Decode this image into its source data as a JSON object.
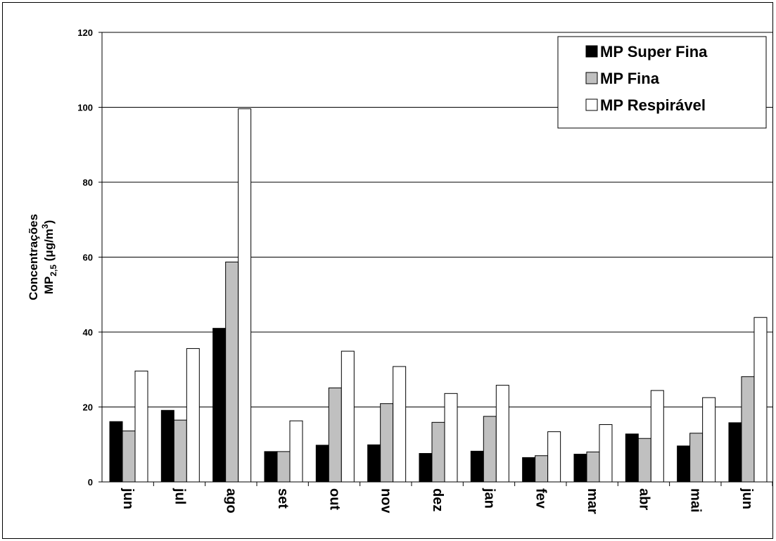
{
  "chart_data": {
    "type": "bar",
    "categories": [
      "jun",
      "jul",
      "ago",
      "set",
      "out",
      "nov",
      "dez",
      "jan",
      "fev",
      "mar",
      "abr",
      "mai",
      "jun"
    ],
    "series": [
      {
        "name": "MP Super Fina",
        "color": "#000000",
        "values": [
          16.1,
          19.1,
          41.0,
          8.1,
          9.8,
          9.9,
          7.6,
          8.2,
          6.5,
          7.4,
          12.8,
          9.6,
          15.8
        ]
      },
      {
        "name": "MP Fina",
        "color": "#c0c0c0",
        "values": [
          13.6,
          16.5,
          58.7,
          8.1,
          25.1,
          20.9,
          15.9,
          17.5,
          7.0,
          8.0,
          11.6,
          13.0,
          28.1
        ]
      },
      {
        "name": "MP Respirável",
        "color": "#ffffff",
        "values": [
          29.6,
          35.6,
          99.6,
          16.3,
          34.9,
          30.8,
          23.6,
          25.8,
          13.4,
          15.3,
          24.4,
          22.5,
          43.9
        ]
      }
    ],
    "ylim": [
      0,
      120
    ],
    "yticks": [
      0,
      20,
      40,
      60,
      80,
      100,
      120
    ],
    "ylabel_line1": "Concentrações",
    "ylabel_line2_prefix": "MP",
    "ylabel_line2_sub": "2,5",
    "ylabel_line2_unit_pre": " (μg/m",
    "ylabel_line2_sup": "3",
    "ylabel_line2_unit_post": ")",
    "grid": true,
    "legend_position": "top-right"
  }
}
